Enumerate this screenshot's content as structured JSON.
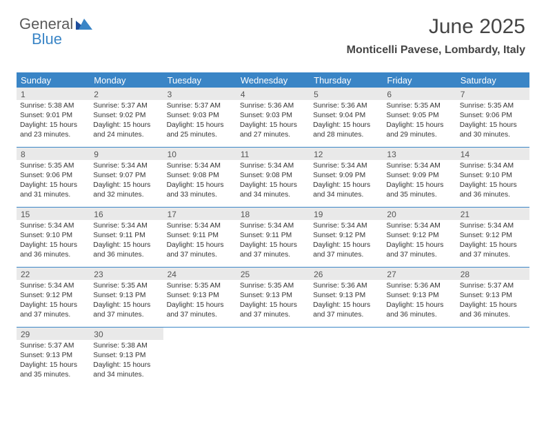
{
  "logo": {
    "text1": "General",
    "text2": "Blue"
  },
  "title": "June 2025",
  "location": "Monticelli Pavese, Lombardy, Italy",
  "colors": {
    "header_bg": "#3a85c6",
    "header_text": "#ffffff",
    "daynum_bg": "#e9e9e9",
    "border": "#3a85c6",
    "text": "#333333",
    "title_color": "#444444"
  },
  "dayNames": [
    "Sunday",
    "Monday",
    "Tuesday",
    "Wednesday",
    "Thursday",
    "Friday",
    "Saturday"
  ],
  "weeks": [
    {
      "nums": [
        "1",
        "2",
        "3",
        "4",
        "5",
        "6",
        "7"
      ],
      "cells": [
        {
          "sunrise": "Sunrise: 5:38 AM",
          "sunset": "Sunset: 9:01 PM",
          "day1": "Daylight: 15 hours",
          "day2": "and 23 minutes."
        },
        {
          "sunrise": "Sunrise: 5:37 AM",
          "sunset": "Sunset: 9:02 PM",
          "day1": "Daylight: 15 hours",
          "day2": "and 24 minutes."
        },
        {
          "sunrise": "Sunrise: 5:37 AM",
          "sunset": "Sunset: 9:03 PM",
          "day1": "Daylight: 15 hours",
          "day2": "and 25 minutes."
        },
        {
          "sunrise": "Sunrise: 5:36 AM",
          "sunset": "Sunset: 9:03 PM",
          "day1": "Daylight: 15 hours",
          "day2": "and 27 minutes."
        },
        {
          "sunrise": "Sunrise: 5:36 AM",
          "sunset": "Sunset: 9:04 PM",
          "day1": "Daylight: 15 hours",
          "day2": "and 28 minutes."
        },
        {
          "sunrise": "Sunrise: 5:35 AM",
          "sunset": "Sunset: 9:05 PM",
          "day1": "Daylight: 15 hours",
          "day2": "and 29 minutes."
        },
        {
          "sunrise": "Sunrise: 5:35 AM",
          "sunset": "Sunset: 9:06 PM",
          "day1": "Daylight: 15 hours",
          "day2": "and 30 minutes."
        }
      ]
    },
    {
      "nums": [
        "8",
        "9",
        "10",
        "11",
        "12",
        "13",
        "14"
      ],
      "cells": [
        {
          "sunrise": "Sunrise: 5:35 AM",
          "sunset": "Sunset: 9:06 PM",
          "day1": "Daylight: 15 hours",
          "day2": "and 31 minutes."
        },
        {
          "sunrise": "Sunrise: 5:34 AM",
          "sunset": "Sunset: 9:07 PM",
          "day1": "Daylight: 15 hours",
          "day2": "and 32 minutes."
        },
        {
          "sunrise": "Sunrise: 5:34 AM",
          "sunset": "Sunset: 9:08 PM",
          "day1": "Daylight: 15 hours",
          "day2": "and 33 minutes."
        },
        {
          "sunrise": "Sunrise: 5:34 AM",
          "sunset": "Sunset: 9:08 PM",
          "day1": "Daylight: 15 hours",
          "day2": "and 34 minutes."
        },
        {
          "sunrise": "Sunrise: 5:34 AM",
          "sunset": "Sunset: 9:09 PM",
          "day1": "Daylight: 15 hours",
          "day2": "and 34 minutes."
        },
        {
          "sunrise": "Sunrise: 5:34 AM",
          "sunset": "Sunset: 9:09 PM",
          "day1": "Daylight: 15 hours",
          "day2": "and 35 minutes."
        },
        {
          "sunrise": "Sunrise: 5:34 AM",
          "sunset": "Sunset: 9:10 PM",
          "day1": "Daylight: 15 hours",
          "day2": "and 36 minutes."
        }
      ]
    },
    {
      "nums": [
        "15",
        "16",
        "17",
        "18",
        "19",
        "20",
        "21"
      ],
      "cells": [
        {
          "sunrise": "Sunrise: 5:34 AM",
          "sunset": "Sunset: 9:10 PM",
          "day1": "Daylight: 15 hours",
          "day2": "and 36 minutes."
        },
        {
          "sunrise": "Sunrise: 5:34 AM",
          "sunset": "Sunset: 9:11 PM",
          "day1": "Daylight: 15 hours",
          "day2": "and 36 minutes."
        },
        {
          "sunrise": "Sunrise: 5:34 AM",
          "sunset": "Sunset: 9:11 PM",
          "day1": "Daylight: 15 hours",
          "day2": "and 37 minutes."
        },
        {
          "sunrise": "Sunrise: 5:34 AM",
          "sunset": "Sunset: 9:11 PM",
          "day1": "Daylight: 15 hours",
          "day2": "and 37 minutes."
        },
        {
          "sunrise": "Sunrise: 5:34 AM",
          "sunset": "Sunset: 9:12 PM",
          "day1": "Daylight: 15 hours",
          "day2": "and 37 minutes."
        },
        {
          "sunrise": "Sunrise: 5:34 AM",
          "sunset": "Sunset: 9:12 PM",
          "day1": "Daylight: 15 hours",
          "day2": "and 37 minutes."
        },
        {
          "sunrise": "Sunrise: 5:34 AM",
          "sunset": "Sunset: 9:12 PM",
          "day1": "Daylight: 15 hours",
          "day2": "and 37 minutes."
        }
      ]
    },
    {
      "nums": [
        "22",
        "23",
        "24",
        "25",
        "26",
        "27",
        "28"
      ],
      "cells": [
        {
          "sunrise": "Sunrise: 5:34 AM",
          "sunset": "Sunset: 9:12 PM",
          "day1": "Daylight: 15 hours",
          "day2": "and 37 minutes."
        },
        {
          "sunrise": "Sunrise: 5:35 AM",
          "sunset": "Sunset: 9:13 PM",
          "day1": "Daylight: 15 hours",
          "day2": "and 37 minutes."
        },
        {
          "sunrise": "Sunrise: 5:35 AM",
          "sunset": "Sunset: 9:13 PM",
          "day1": "Daylight: 15 hours",
          "day2": "and 37 minutes."
        },
        {
          "sunrise": "Sunrise: 5:35 AM",
          "sunset": "Sunset: 9:13 PM",
          "day1": "Daylight: 15 hours",
          "day2": "and 37 minutes."
        },
        {
          "sunrise": "Sunrise: 5:36 AM",
          "sunset": "Sunset: 9:13 PM",
          "day1": "Daylight: 15 hours",
          "day2": "and 37 minutes."
        },
        {
          "sunrise": "Sunrise: 5:36 AM",
          "sunset": "Sunset: 9:13 PM",
          "day1": "Daylight: 15 hours",
          "day2": "and 36 minutes."
        },
        {
          "sunrise": "Sunrise: 5:37 AM",
          "sunset": "Sunset: 9:13 PM",
          "day1": "Daylight: 15 hours",
          "day2": "and 36 minutes."
        }
      ]
    },
    {
      "nums": [
        "29",
        "30",
        "",
        "",
        "",
        "",
        ""
      ],
      "cells": [
        {
          "sunrise": "Sunrise: 5:37 AM",
          "sunset": "Sunset: 9:13 PM",
          "day1": "Daylight: 15 hours",
          "day2": "and 35 minutes."
        },
        {
          "sunrise": "Sunrise: 5:38 AM",
          "sunset": "Sunset: 9:13 PM",
          "day1": "Daylight: 15 hours",
          "day2": "and 34 minutes."
        },
        {
          "sunrise": "",
          "sunset": "",
          "day1": "",
          "day2": ""
        },
        {
          "sunrise": "",
          "sunset": "",
          "day1": "",
          "day2": ""
        },
        {
          "sunrise": "",
          "sunset": "",
          "day1": "",
          "day2": ""
        },
        {
          "sunrise": "",
          "sunset": "",
          "day1": "",
          "day2": ""
        },
        {
          "sunrise": "",
          "sunset": "",
          "day1": "",
          "day2": ""
        }
      ]
    }
  ]
}
